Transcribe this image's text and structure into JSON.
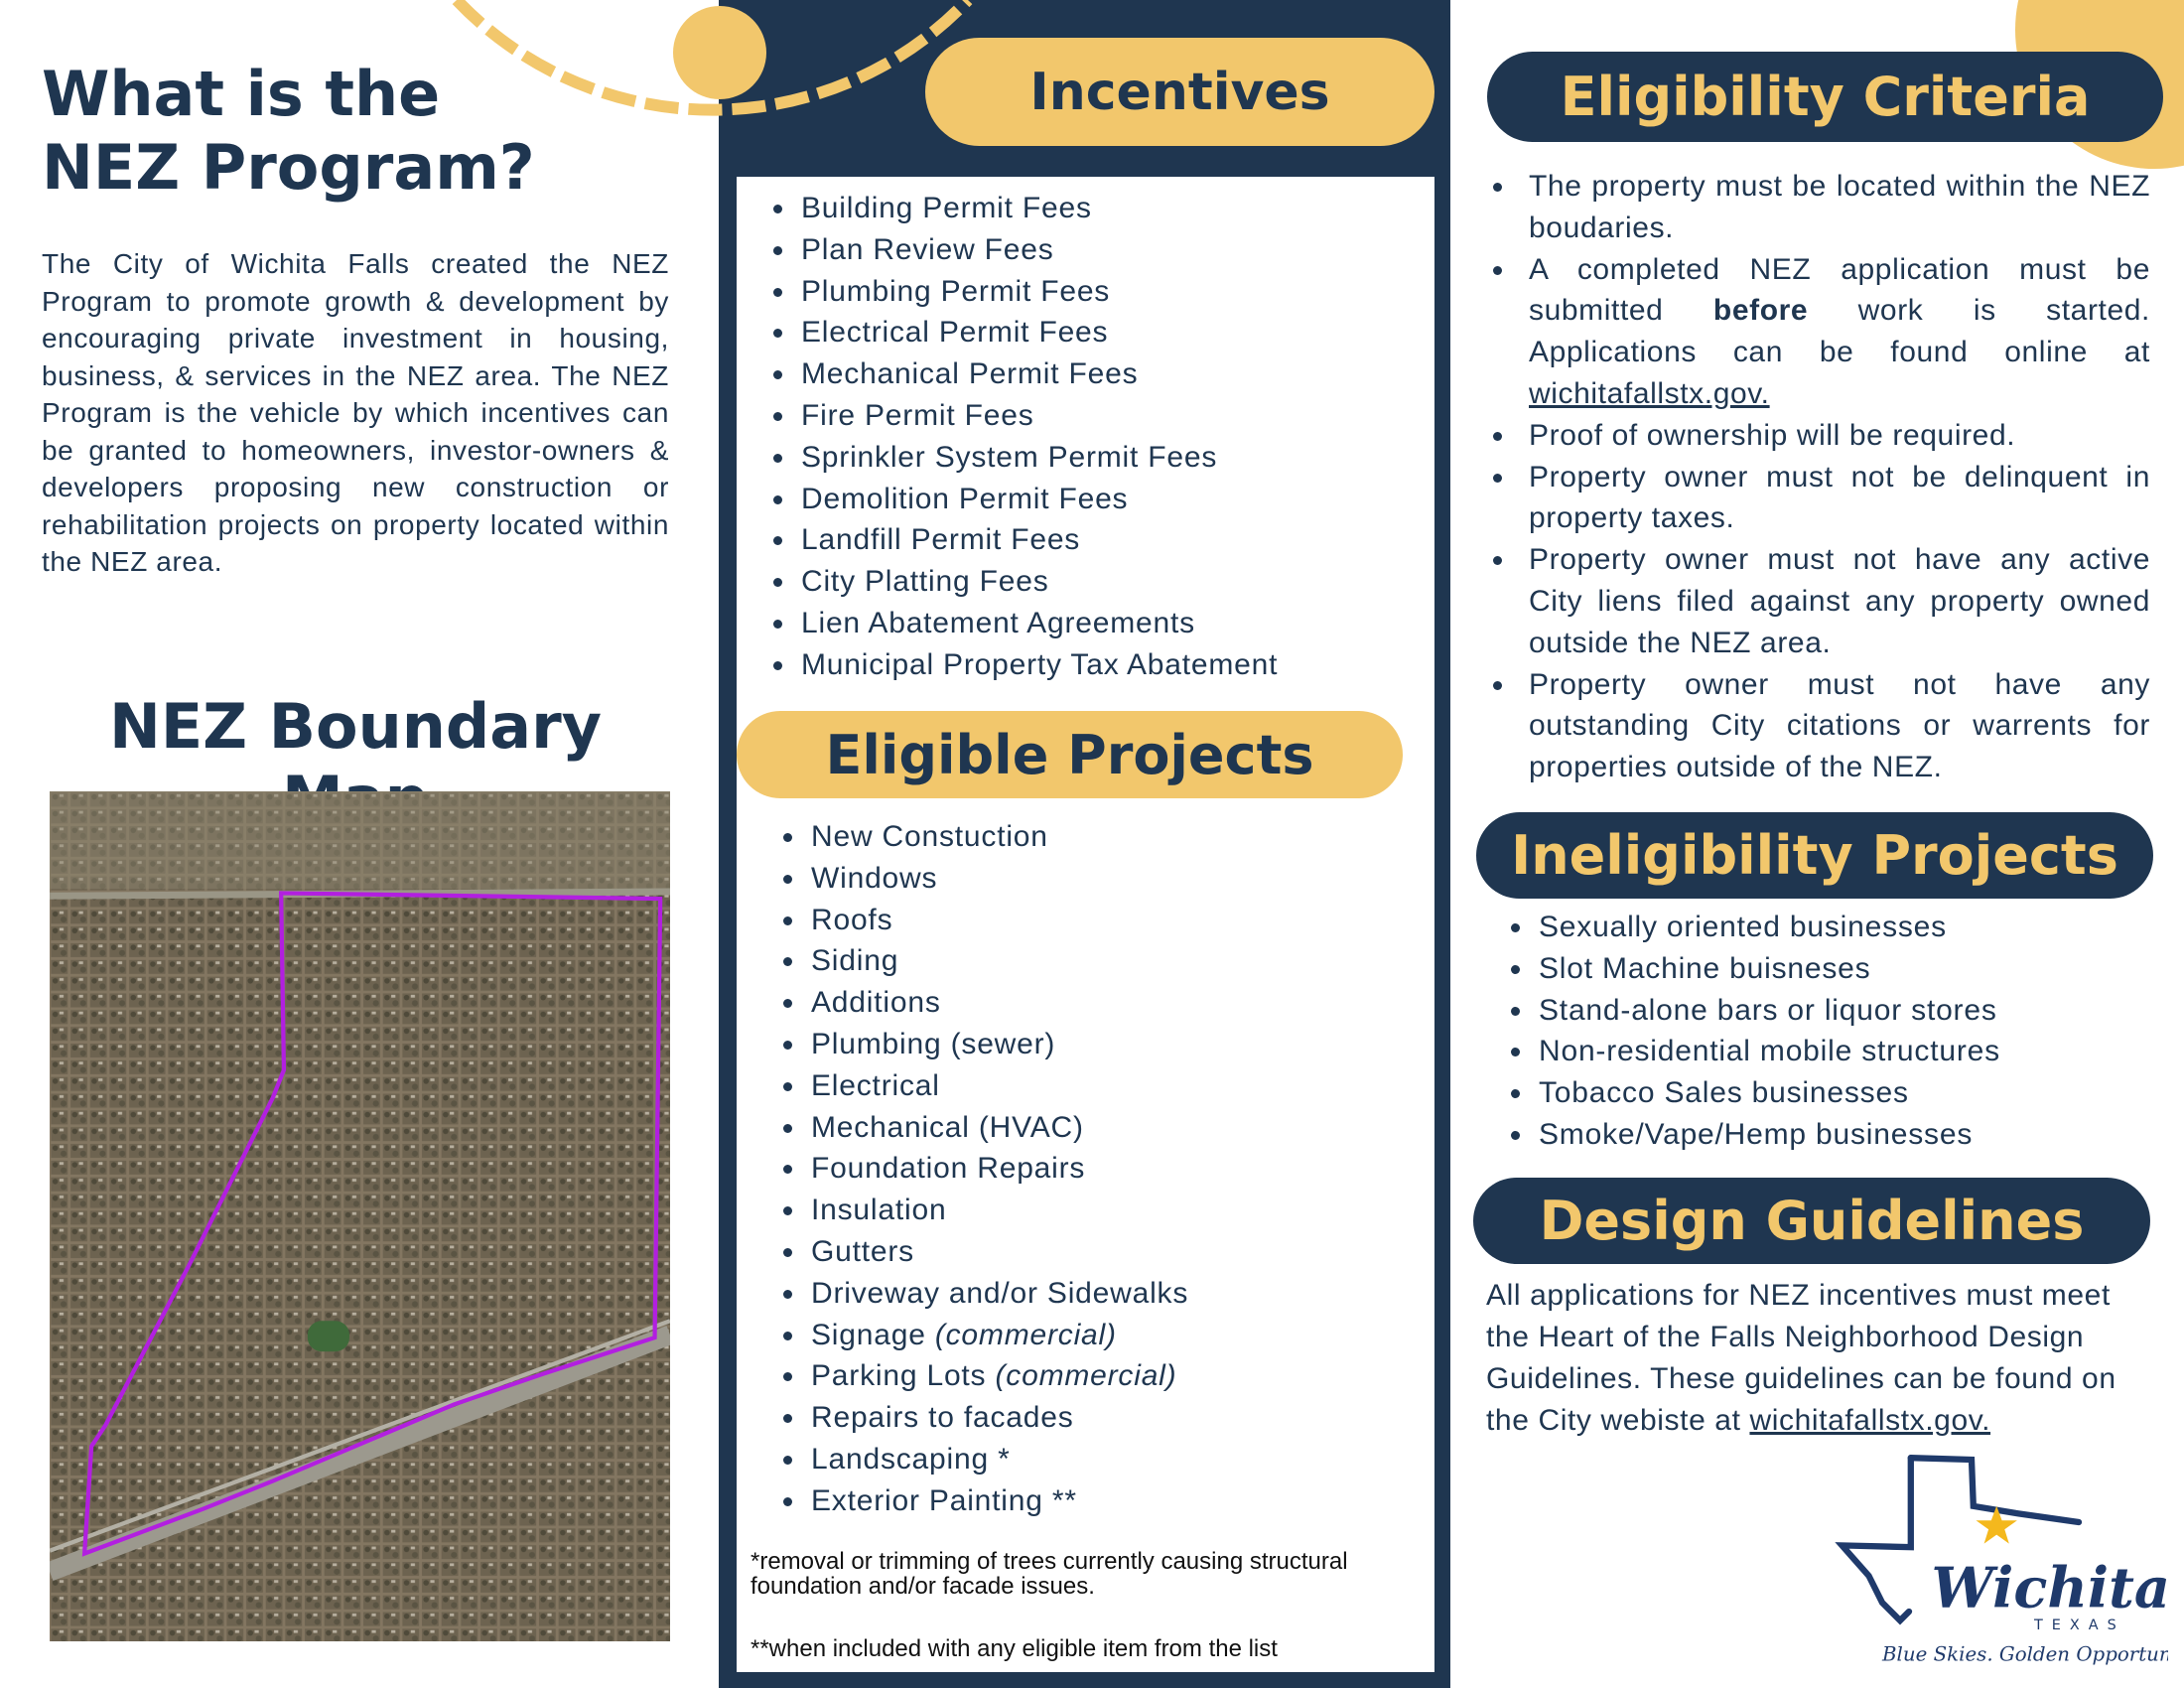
{
  "colors": {
    "navy": "#1f3650",
    "gold": "#f2c76c",
    "boundary": "#b21fe0"
  },
  "intro": {
    "title_line1": "What is the",
    "title_line2": "NEZ Program?",
    "body": "The City of Wichita Falls created the NEZ Program to promote growth & development by encouraging private investment in housing, business, & services in the NEZ area. The NEZ Program is the vehicle by which incentives can be granted to homeowners, investor-owners & developers proposing new construction or rehabilitation projects on property located within the NEZ area."
  },
  "map": {
    "title": "NEZ Boundary Map"
  },
  "incentives": {
    "title": "Incentives",
    "items": [
      "Building Permit Fees",
      "Plan Review Fees",
      "Plumbing Permit Fees",
      "Electrical Permit Fees",
      "Mechanical Permit Fees",
      "Fire  Permit Fees",
      "Sprinkler System Permit Fees",
      "Demolition Permit Fees",
      "Landfill Permit Fees",
      "City Platting Fees",
      "Lien Abatement Agreements",
      "Municipal Property Tax Abatement"
    ]
  },
  "eligible_projects": {
    "title": "Eligible Projects",
    "items": [
      {
        "text": "New Constuction"
      },
      {
        "text": "Windows"
      },
      {
        "text": "Roofs"
      },
      {
        "text": "Siding"
      },
      {
        "text": "Additions"
      },
      {
        "text": "Plumbing (sewer)"
      },
      {
        "text": "Electrical"
      },
      {
        "text": "Mechanical (HVAC)"
      },
      {
        "text": "Foundation Repairs"
      },
      {
        "text": "Insulation"
      },
      {
        "text": "Gutters"
      },
      {
        "text": "Driveway and/or Sidewalks"
      },
      {
        "text": "Signage ",
        "note": "(commercial)"
      },
      {
        "text": "Parking Lots ",
        "note": "(commercial)"
      },
      {
        "text": "Repairs to facades"
      },
      {
        "text": "Landscaping *"
      },
      {
        "text": "Exterior Painting **"
      }
    ],
    "footnote1": "*removal or trimming of trees currently causing structural foundation and/or facade issues.",
    "footnote2": "**when included with any eligible item from the list"
  },
  "eligibility": {
    "title": "Eligibility Criteria",
    "c1": "The property must be located within the NEZ boudaries.",
    "c2_a": "A completed NEZ application must be submitted ",
    "c2_bold": "before",
    "c2_b": " work is started. Applications can be found online at ",
    "c2_link": "wichitafallstx.gov.",
    "c3": "Proof of ownership will be required.",
    "c4": "Property owner must not be delinquent in property taxes.",
    "c5": "Property owner must not have any active City liens filed against any property owned outside the NEZ area.",
    "c6": "Property owner must not have any outstanding City citations or warrents for properties outside of the NEZ."
  },
  "ineligibility": {
    "title": "Ineligibility Projects",
    "items": [
      "Sexually oriented businesses",
      "Slot Machine buisneses",
      "Stand-alone bars or liquor stores",
      "Non-residential mobile structures",
      "Tobacco Sales businesses",
      "Smoke/Vape/Hemp businesses"
    ]
  },
  "design": {
    "title": "Design Guidelines",
    "body": "All applications for NEZ incentives must meet the Heart of the Falls Neighborhood Design Guidelines. These guidelines can be found on the City webiste at ",
    "link": "wichitafallstx.gov."
  },
  "logo": {
    "name": "Wichita Falls",
    "state": "TEXAS",
    "tagline": "Blue Skies. Golden Opportunities."
  }
}
